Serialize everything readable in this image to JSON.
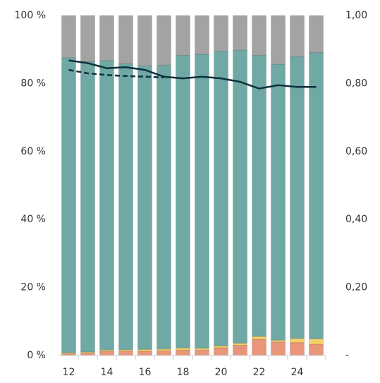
{
  "chart_data": {
    "type": "stacked_bar",
    "categories": [
      "12",
      null,
      "14",
      null,
      "16",
      null,
      "18",
      null,
      "20",
      null,
      "22",
      null,
      "24",
      null
    ],
    "series": [
      {
        "color": "#e8957a",
        "values": [
          0.5,
          0.7,
          1.2,
          1.3,
          1.3,
          1.4,
          1.6,
          1.6,
          2.3,
          3.0,
          4.8,
          4.0,
          3.8,
          3.3
        ]
      },
      {
        "color": "#f5cf6a",
        "values": [
          0.3,
          0.3,
          0.4,
          0.4,
          0.5,
          0.5,
          0.6,
          0.5,
          0.5,
          0.6,
          0.8,
          0.5,
          1.2,
          1.6
        ]
      },
      {
        "color": "#6fa8a4",
        "values": [
          86.8,
          85.5,
          85.2,
          84.1,
          83.4,
          83.5,
          86.1,
          86.5,
          86.7,
          86.2,
          82.7,
          81.2,
          82.9,
          84.2
        ]
      },
      {
        "color": "#a3a3a3",
        "values": [
          12.4,
          13.5,
          13.2,
          14.2,
          14.8,
          14.6,
          11.7,
          11.4,
          10.5,
          10.2,
          11.7,
          14.3,
          12.1,
          10.9
        ]
      }
    ],
    "lines": [
      {
        "type": "line",
        "axis": "y2",
        "color": "#0e2f3d",
        "dash": false,
        "values": [
          0.868,
          0.86,
          0.845,
          0.848,
          0.84,
          0.82,
          0.815,
          0.82,
          0.815,
          0.805,
          0.785,
          0.795,
          0.79,
          0.79
        ]
      },
      {
        "type": "line",
        "axis": "y2",
        "color": "#0e2f3d",
        "dash": true,
        "values": [
          0.84,
          0.83,
          0.825,
          0.822,
          0.82,
          0.818,
          null,
          null,
          null,
          null,
          null,
          null,
          null,
          null
        ]
      }
    ],
    "ylim": [
      0,
      100
    ],
    "yticks": [
      {
        "value": 0,
        "label": "0 %"
      },
      {
        "value": 20,
        "label": "20 %"
      },
      {
        "value": 40,
        "label": "40 %"
      },
      {
        "value": 60,
        "label": "60 %"
      },
      {
        "value": 80,
        "label": "80 %"
      },
      {
        "value": 100,
        "label": "100 %"
      }
    ],
    "y2lim": [
      0,
      1
    ],
    "y2ticks": [
      {
        "value": 0,
        "label": "-"
      },
      {
        "value": 0.2,
        "label": "0,20"
      },
      {
        "value": 0.4,
        "label": "0,40"
      },
      {
        "value": 0.6,
        "label": "0,60"
      },
      {
        "value": 0.8,
        "label": "0,80"
      },
      {
        "value": 1,
        "label": "1,00"
      }
    ]
  }
}
